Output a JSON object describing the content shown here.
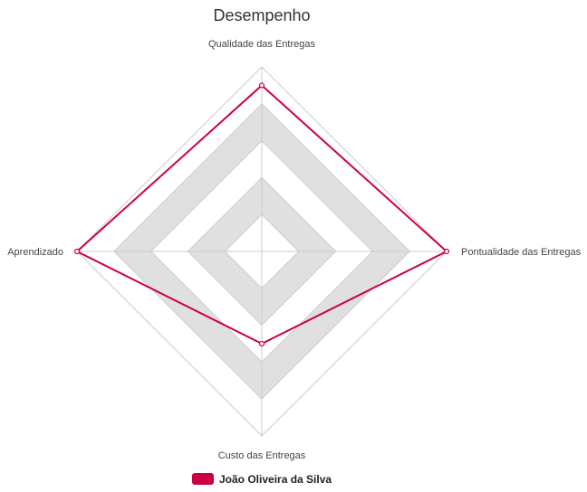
{
  "chart_data": {
    "type": "radar",
    "title": "Desempenho",
    "axes": [
      "Qualidade das Entregas",
      "Pontualidade das Entregas",
      "Custo das Entregas",
      "Aprendizado"
    ],
    "range": [
      0,
      5
    ],
    "rings": 5,
    "series": [
      {
        "name": "João Oliveira da Silva",
        "values": [
          4.5,
          5,
          2.5,
          5
        ],
        "color": "#cc0044"
      }
    ],
    "legend_position": "bottom-center",
    "ring_colors": [
      "#ffffff",
      "#e0e0e0"
    ]
  }
}
